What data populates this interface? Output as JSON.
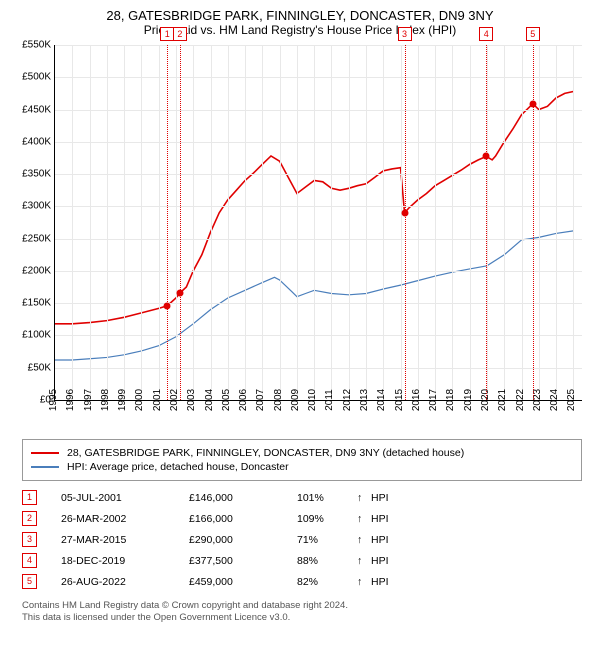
{
  "title": "28, GATESBRIDGE PARK, FINNINGLEY, DONCASTER, DN9 3NY",
  "subtitle": "Price paid vs. HM Land Registry's House Price Index (HPI)",
  "chart": {
    "type": "line",
    "background_color": "#ffffff",
    "grid_color": "#e8e8e8",
    "axis_color": "#000000",
    "x_min_year": 1995,
    "x_max_year": 2025.5,
    "x_ticks": [
      1995,
      1996,
      1997,
      1998,
      1999,
      2000,
      2001,
      2002,
      2003,
      2004,
      2005,
      2006,
      2007,
      2008,
      2009,
      2010,
      2011,
      2012,
      2013,
      2014,
      2015,
      2016,
      2017,
      2018,
      2019,
      2020,
      2021,
      2022,
      2023,
      2024,
      2025
    ],
    "y_min": 0,
    "y_max": 550000,
    "y_ticks": [
      {
        "v": 0,
        "label": "£0"
      },
      {
        "v": 50000,
        "label": "£50K"
      },
      {
        "v": 100000,
        "label": "£100K"
      },
      {
        "v": 150000,
        "label": "£150K"
      },
      {
        "v": 200000,
        "label": "£200K"
      },
      {
        "v": 250000,
        "label": "£250K"
      },
      {
        "v": 300000,
        "label": "£300K"
      },
      {
        "v": 350000,
        "label": "£350K"
      },
      {
        "v": 400000,
        "label": "£400K"
      },
      {
        "v": 450000,
        "label": "£450K"
      },
      {
        "v": 500000,
        "label": "£500K"
      },
      {
        "v": 550000,
        "label": "£550K"
      }
    ],
    "series": [
      {
        "name": "property",
        "color": "#e00000",
        "width": 1.6,
        "points": [
          [
            1995.0,
            118000
          ],
          [
            1996.0,
            118000
          ],
          [
            1997.0,
            120000
          ],
          [
            1998.0,
            123000
          ],
          [
            1999.0,
            128000
          ],
          [
            2000.0,
            135000
          ],
          [
            2001.0,
            142000
          ],
          [
            2001.5,
            146000
          ],
          [
            2002.0,
            158000
          ],
          [
            2002.23,
            166000
          ],
          [
            2002.6,
            175000
          ],
          [
            2003.0,
            200000
          ],
          [
            2003.5,
            225000
          ],
          [
            2004.0,
            260000
          ],
          [
            2004.5,
            290000
          ],
          [
            2005.0,
            310000
          ],
          [
            2005.5,
            325000
          ],
          [
            2006.0,
            340000
          ],
          [
            2006.5,
            352000
          ],
          [
            2007.0,
            365000
          ],
          [
            2007.5,
            378000
          ],
          [
            2008.0,
            370000
          ],
          [
            2008.5,
            345000
          ],
          [
            2009.0,
            320000
          ],
          [
            2009.5,
            330000
          ],
          [
            2010.0,
            340000
          ],
          [
            2010.5,
            338000
          ],
          [
            2011.0,
            328000
          ],
          [
            2011.5,
            325000
          ],
          [
            2012.0,
            328000
          ],
          [
            2012.5,
            332000
          ],
          [
            2013.0,
            335000
          ],
          [
            2013.5,
            345000
          ],
          [
            2014.0,
            355000
          ],
          [
            2014.5,
            358000
          ],
          [
            2015.0,
            360000
          ],
          [
            2015.23,
            290000
          ],
          [
            2015.5,
            298000
          ],
          [
            2016.0,
            310000
          ],
          [
            2016.5,
            320000
          ],
          [
            2017.0,
            332000
          ],
          [
            2017.5,
            340000
          ],
          [
            2018.0,
            348000
          ],
          [
            2018.5,
            356000
          ],
          [
            2019.0,
            365000
          ],
          [
            2019.5,
            372000
          ],
          [
            2019.96,
            377500
          ],
          [
            2020.3,
            372000
          ],
          [
            2020.5,
            378000
          ],
          [
            2021.0,
            400000
          ],
          [
            2021.5,
            420000
          ],
          [
            2022.0,
            442000
          ],
          [
            2022.5,
            455000
          ],
          [
            2022.65,
            459000
          ],
          [
            2023.0,
            450000
          ],
          [
            2023.5,
            455000
          ],
          [
            2024.0,
            468000
          ],
          [
            2024.5,
            475000
          ],
          [
            2025.0,
            478000
          ]
        ]
      },
      {
        "name": "hpi",
        "color": "#4a7ebb",
        "width": 1.2,
        "points": [
          [
            1995.0,
            62000
          ],
          [
            1996.0,
            62000
          ],
          [
            1997.0,
            64000
          ],
          [
            1998.0,
            66000
          ],
          [
            1999.0,
            70000
          ],
          [
            2000.0,
            76000
          ],
          [
            2001.0,
            84000
          ],
          [
            2002.0,
            98000
          ],
          [
            2003.0,
            118000
          ],
          [
            2004.0,
            140000
          ],
          [
            2005.0,
            158000
          ],
          [
            2006.0,
            170000
          ],
          [
            2007.0,
            182000
          ],
          [
            2007.7,
            190000
          ],
          [
            2008.0,
            186000
          ],
          [
            2008.7,
            168000
          ],
          [
            2009.0,
            160000
          ],
          [
            2009.5,
            165000
          ],
          [
            2010.0,
            170000
          ],
          [
            2011.0,
            165000
          ],
          [
            2012.0,
            163000
          ],
          [
            2013.0,
            165000
          ],
          [
            2014.0,
            172000
          ],
          [
            2015.0,
            178000
          ],
          [
            2016.0,
            185000
          ],
          [
            2017.0,
            192000
          ],
          [
            2018.0,
            198000
          ],
          [
            2019.0,
            203000
          ],
          [
            2020.0,
            208000
          ],
          [
            2021.0,
            225000
          ],
          [
            2022.0,
            248000
          ],
          [
            2023.0,
            252000
          ],
          [
            2024.0,
            258000
          ],
          [
            2025.0,
            262000
          ]
        ]
      }
    ],
    "sale_markers": [
      {
        "n": "1",
        "year": 2001.5,
        "price": 146000,
        "color": "#e00000"
      },
      {
        "n": "2",
        "year": 2002.23,
        "price": 166000,
        "color": "#e00000"
      },
      {
        "n": "3",
        "year": 2015.23,
        "price": 290000,
        "color": "#e00000"
      },
      {
        "n": "4",
        "year": 2019.96,
        "price": 377500,
        "color": "#e00000"
      },
      {
        "n": "5",
        "year": 2022.65,
        "price": 459000,
        "color": "#e00000"
      }
    ]
  },
  "legend": {
    "items": [
      {
        "color": "#e00000",
        "label": "28, GATESBRIDGE PARK, FINNINGLEY, DONCASTER, DN9 3NY (detached house)"
      },
      {
        "color": "#4a7ebb",
        "label": "HPI: Average price, detached house, Doncaster"
      }
    ]
  },
  "sales": [
    {
      "n": "1",
      "date": "05-JUL-2001",
      "price": "£146,000",
      "pct": "101%",
      "arrow": "↑",
      "hpi": "HPI",
      "color": "#e00000"
    },
    {
      "n": "2",
      "date": "26-MAR-2002",
      "price": "£166,000",
      "pct": "109%",
      "arrow": "↑",
      "hpi": "HPI",
      "color": "#e00000"
    },
    {
      "n": "3",
      "date": "27-MAR-2015",
      "price": "£290,000",
      "pct": "71%",
      "arrow": "↑",
      "hpi": "HPI",
      "color": "#e00000"
    },
    {
      "n": "4",
      "date": "18-DEC-2019",
      "price": "£377,500",
      "pct": "88%",
      "arrow": "↑",
      "hpi": "HPI",
      "color": "#e00000"
    },
    {
      "n": "5",
      "date": "26-AUG-2022",
      "price": "£459,000",
      "pct": "82%",
      "arrow": "↑",
      "hpi": "HPI",
      "color": "#e00000"
    }
  ],
  "footer": {
    "line1": "Contains HM Land Registry data © Crown copyright and database right 2024.",
    "line2": "This data is licensed under the Open Government Licence v3.0."
  }
}
